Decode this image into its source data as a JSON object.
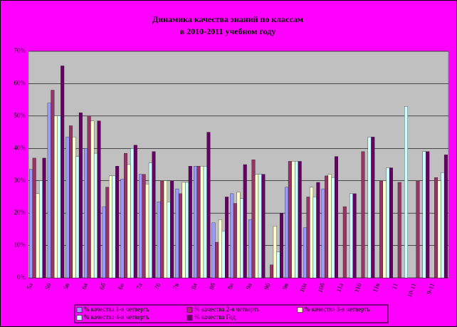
{
  "chart_data": {
    "type": "bar",
    "title": "Динамика качества знаний по классам",
    "subtitle": "в 2010-2011 учебном году",
    "categories": [
      "5а",
      "5б",
      "5в",
      "6а",
      "6б",
      "6в",
      "7а",
      "7б",
      "7в",
      "8а",
      "8б",
      "8в",
      "9а",
      "9б",
      "9в",
      "10а",
      "10б",
      "11а",
      "11б",
      "11в",
      "11",
      "10-11",
      "9-11"
    ],
    "series": [
      {
        "name": "% качества 1-я четверть",
        "color": "#9999ff",
        "values": [
          33.5,
          54,
          43.5,
          40,
          22,
          30.5,
          32,
          23.5,
          27.5,
          34.5,
          17,
          26,
          18,
          null,
          28,
          15.5,
          27.5,
          null,
          null,
          null,
          null,
          null,
          null
        ]
      },
      {
        "name": "% качества 2-я четверть",
        "color": "#993366",
        "values": [
          37,
          58,
          47,
          50,
          28,
          38.5,
          32,
          30,
          26,
          34.5,
          11,
          23,
          36.5,
          4,
          36,
          25,
          31.5,
          22,
          39,
          30,
          29.5,
          30,
          31
        ]
      },
      {
        "name": "% качества 3-я четверть",
        "color": "#ffffcc",
        "values": [
          26,
          50,
          43.5,
          48.5,
          31.5,
          35,
          29,
          30,
          29.5,
          34.5,
          18,
          26.5,
          32,
          16,
          36,
          28,
          32,
          null,
          null,
          30,
          null,
          null,
          30
        ]
      },
      {
        "name": "% качества 4-я четверть",
        "color": "#ccffff",
        "values": [
          30,
          50,
          37.5,
          38.5,
          31.5,
          40,
          35.5,
          23.5,
          29.5,
          34.5,
          14.5,
          24.5,
          32,
          8,
          36,
          25,
          31,
          26,
          43.5,
          34,
          53,
          39,
          32.5
        ]
      },
      {
        "name": "% качества Год",
        "color": "#660066",
        "values": [
          37,
          65.5,
          51,
          48.5,
          34.5,
          41,
          39,
          30,
          34.5,
          45,
          25,
          35,
          32,
          20,
          36,
          29.5,
          37.5,
          26,
          43.5,
          34,
          null,
          39,
          38
        ]
      }
    ],
    "ylim": [
      0,
      70
    ],
    "yticks": [
      {
        "value": 0,
        "label": "0%"
      },
      {
        "value": 10,
        "label": "10%"
      },
      {
        "value": 20,
        "label": "20%"
      },
      {
        "value": 30,
        "label": "30%"
      },
      {
        "value": 40,
        "label": "40%"
      },
      {
        "value": 50,
        "label": "50%"
      },
      {
        "value": 60,
        "label": "60%"
      },
      {
        "value": 70,
        "label": "70%"
      }
    ],
    "grid": true
  }
}
